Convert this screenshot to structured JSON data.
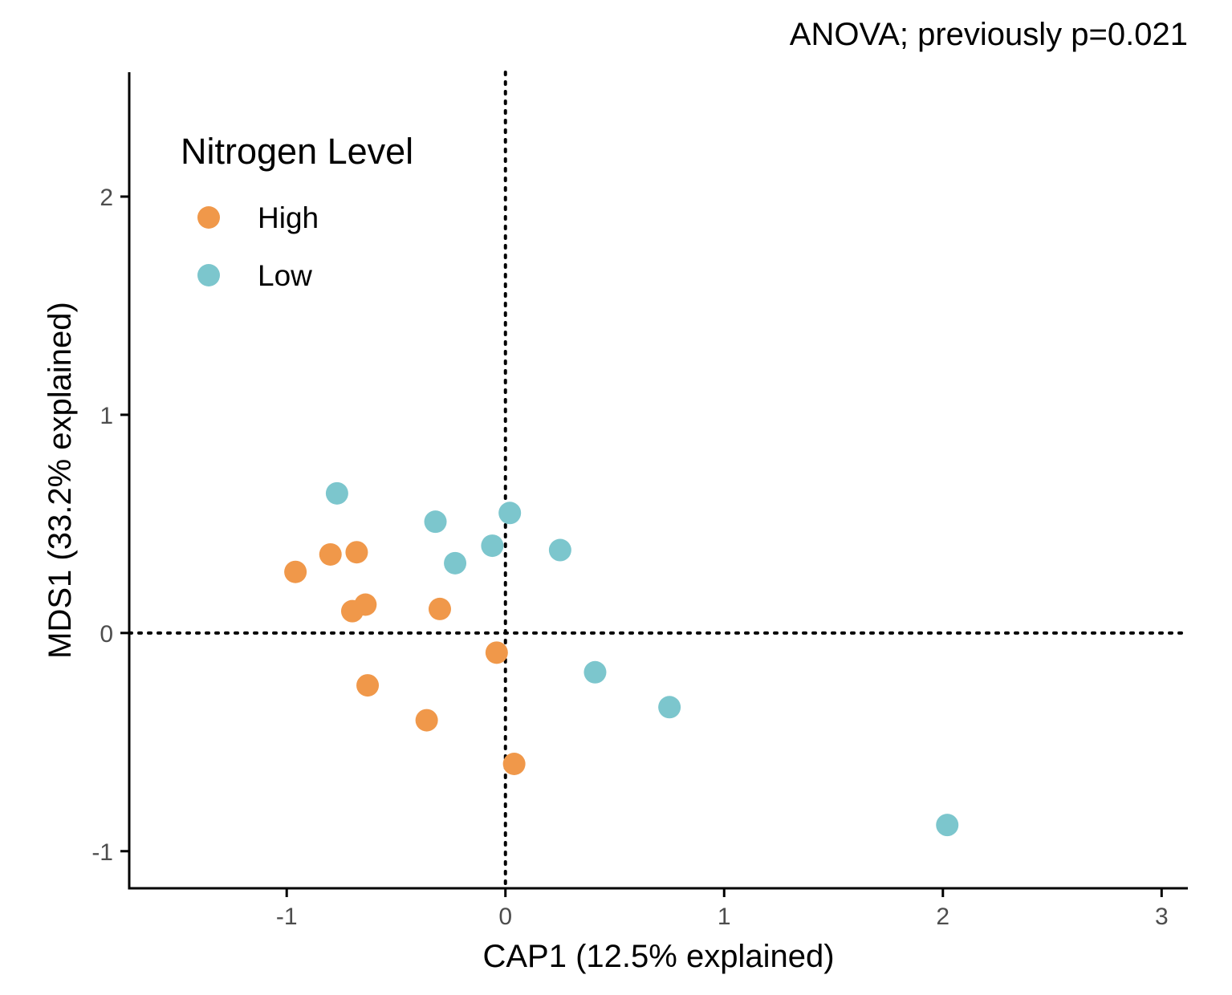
{
  "chart_data": {
    "type": "scatter",
    "title": "",
    "annotation": "ANOVA; previously p=0.021",
    "xlabel": "CAP1 (12.5% explained)",
    "ylabel": "MDS1 (33.2% explained)",
    "xlim": [
      -1.72,
      3.12
    ],
    "ylim": [
      -1.17,
      2.57
    ],
    "x_ticks": [
      -1,
      0,
      1,
      2,
      3
    ],
    "x_tick_labels": [
      "-1",
      "0",
      "1",
      "2",
      "3"
    ],
    "y_ticks": [
      -1,
      0,
      1,
      2
    ],
    "y_tick_labels": [
      "-1",
      "0",
      "1",
      "2"
    ],
    "reference_lines": {
      "x": 0,
      "y": 0,
      "style": "dotted"
    },
    "grid": false,
    "legend": {
      "title": "Nitrogen Level",
      "placement": "top-left inside",
      "entries": [
        "High",
        "Low"
      ]
    },
    "series": [
      {
        "name": "High",
        "color": "#F0984A",
        "points": [
          {
            "x": -0.96,
            "y": 0.28
          },
          {
            "x": -0.8,
            "y": 0.36
          },
          {
            "x": -0.68,
            "y": 0.37
          },
          {
            "x": -0.7,
            "y": 0.1
          },
          {
            "x": -0.64,
            "y": 0.13
          },
          {
            "x": -0.3,
            "y": 0.11
          },
          {
            "x": -0.04,
            "y": -0.09
          },
          {
            "x": -0.63,
            "y": -0.24
          },
          {
            "x": -0.36,
            "y": -0.4
          },
          {
            "x": 0.04,
            "y": -0.6
          }
        ]
      },
      {
        "name": "Low",
        "color": "#7CC6CD",
        "points": [
          {
            "x": -0.77,
            "y": 0.64
          },
          {
            "x": -0.32,
            "y": 0.51
          },
          {
            "x": 0.02,
            "y": 0.55
          },
          {
            "x": -0.06,
            "y": 0.4
          },
          {
            "x": -0.23,
            "y": 0.32
          },
          {
            "x": 0.25,
            "y": 0.38
          },
          {
            "x": 0.41,
            "y": -0.18
          },
          {
            "x": 0.75,
            "y": -0.34
          },
          {
            "x": 2.02,
            "y": -0.88
          }
        ]
      }
    ]
  }
}
